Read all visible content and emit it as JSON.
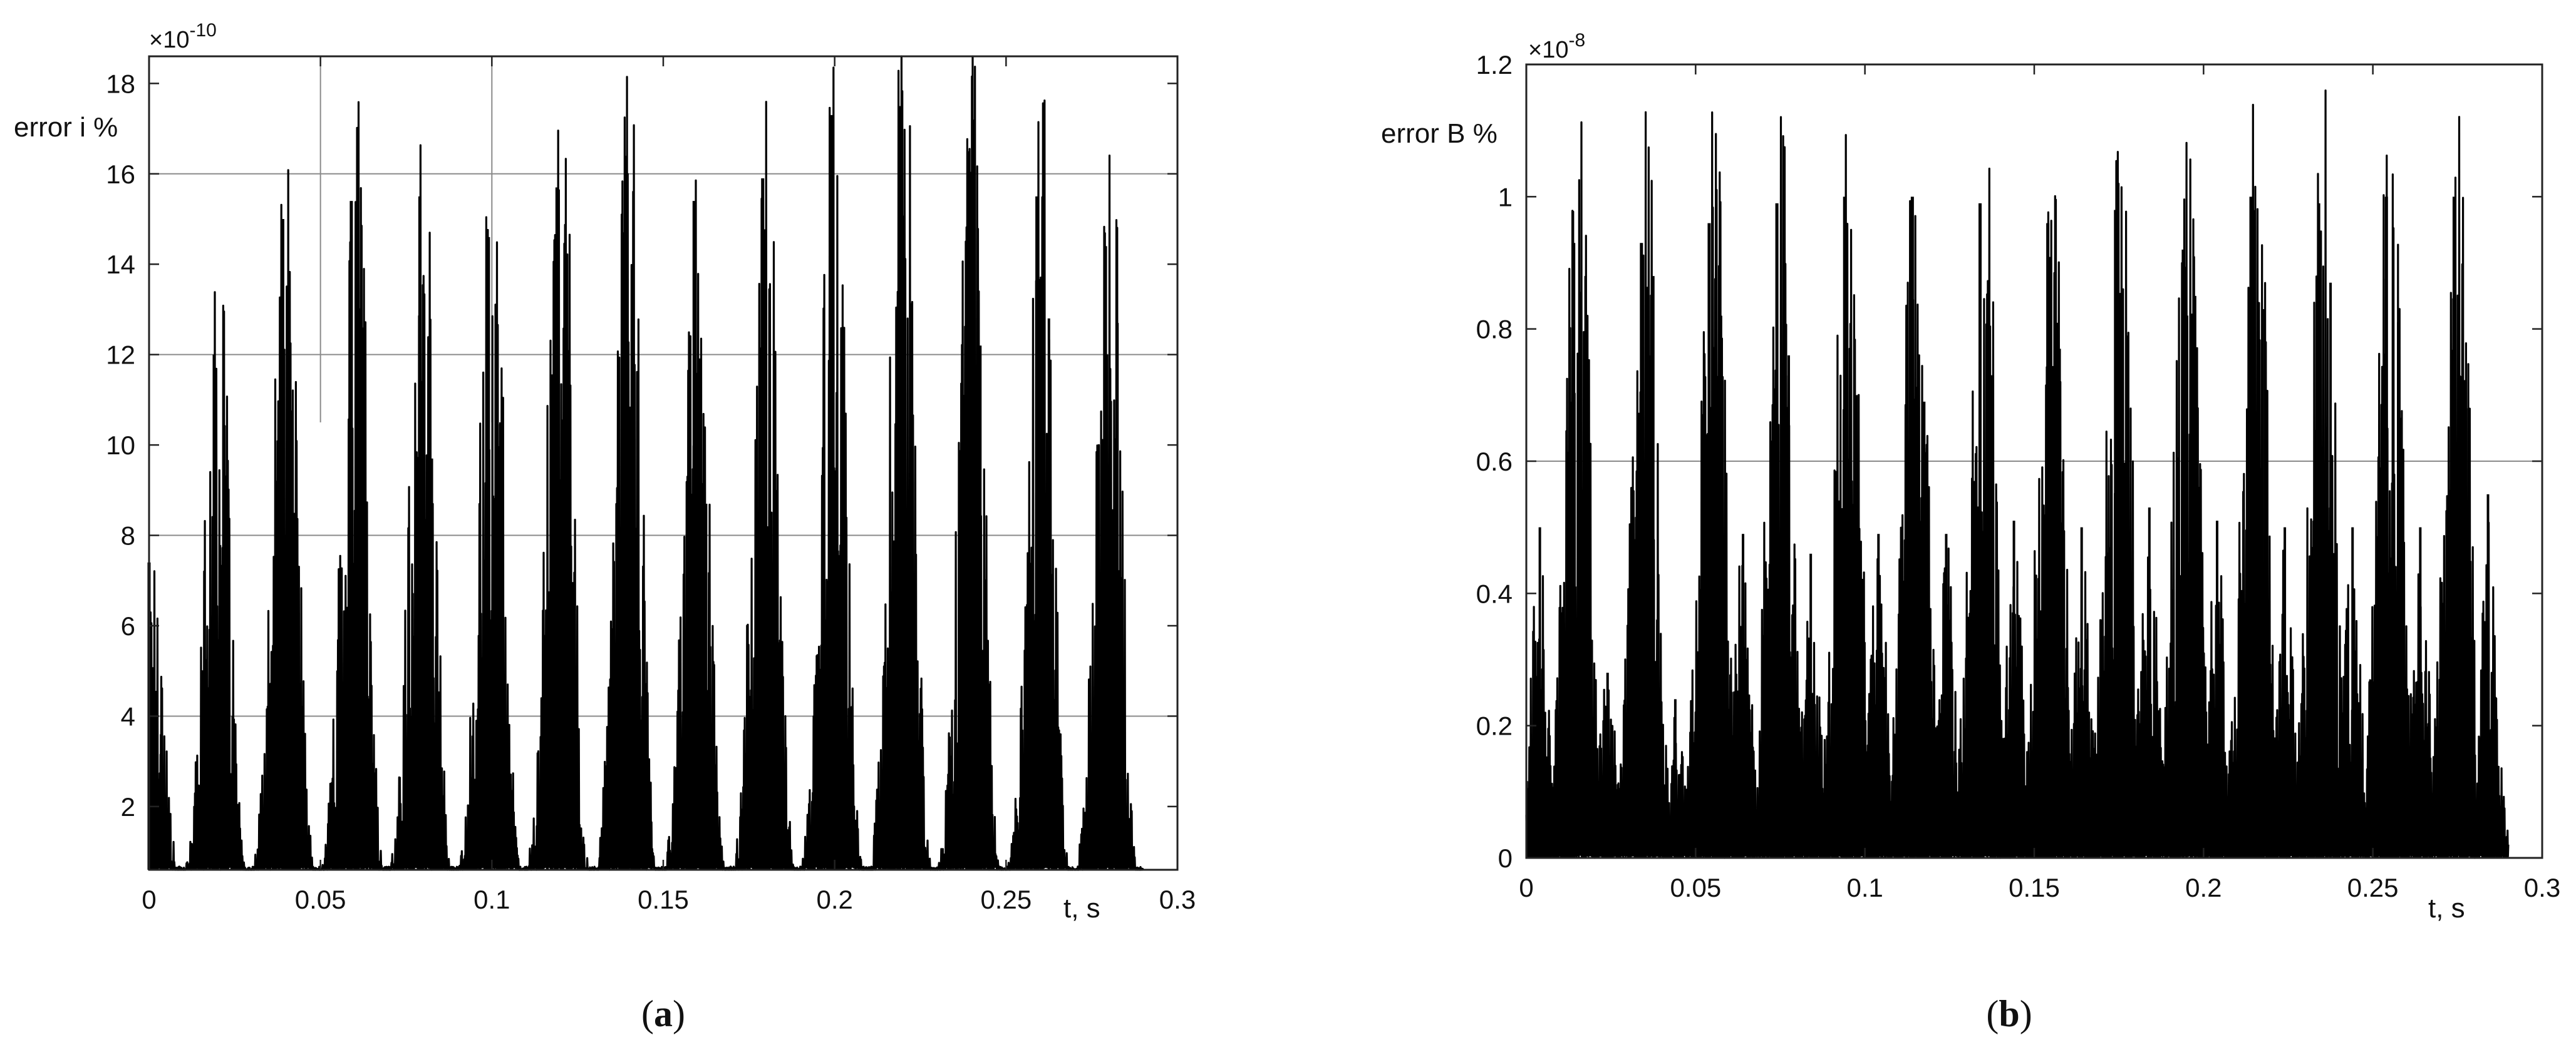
{
  "chart_data": [
    {
      "type": "line",
      "panel_label": "(a)",
      "panel_letter": "a",
      "xlabel": "t, s",
      "ylabel": "error i %",
      "y_exponent_label": "×10",
      "y_exponent_power": "-10",
      "xlim": [
        0,
        0.3
      ],
      "ylim": [
        0.6,
        18.6
      ],
      "xticks": [
        0,
        0.05,
        0.1,
        0.15,
        0.2,
        0.25,
        0.3
      ],
      "xtick_labels": [
        "0",
        "0.05",
        "0.1",
        "0.15",
        "0.2",
        "0.25",
        "0.3"
      ],
      "yticks": [
        2,
        4,
        6,
        8,
        10,
        12,
        14,
        16,
        18
      ],
      "ytick_labels": [
        "2",
        "4",
        "6",
        "8",
        "10",
        "12",
        "14",
        "16",
        "18"
      ],
      "grid_y": [
        4,
        8,
        12,
        16
      ],
      "grid_x": [
        0.05,
        0.1
      ],
      "series": [
        {
          "color": "#000000",
          "peak_times": [
            0.0,
            0.019,
            0.039,
            0.059,
            0.079,
            0.099,
            0.119,
            0.139,
            0.159,
            0.179,
            0.199,
            0.219,
            0.239,
            0.259,
            0.279
          ],
          "peak_values": [
            7.4,
            12.0,
            15.0,
            15.4,
            15.5,
            14.6,
            15.7,
            16.4,
            15.4,
            15.9,
            17.3,
            17.5,
            16.5,
            15.5,
            14.4
          ],
          "side_peak_values": [
            3.6,
            9.3,
            8.5,
            12.6,
            9.7,
            10.5,
            12.1,
            11.0,
            8.7,
            10.1,
            7.3,
            11.2,
            12.2,
            12.8,
            12.7
          ],
          "t_end": 0.29
        }
      ]
    },
    {
      "type": "line",
      "panel_label": "(b)",
      "panel_letter": "b",
      "xlabel": "t, s",
      "ylabel": "error B %",
      "y_exponent_label": "×10",
      "y_exponent_power": "-8",
      "xlim": [
        0,
        0.3
      ],
      "ylim": [
        0,
        1.2
      ],
      "xticks": [
        0,
        0.05,
        0.1,
        0.15,
        0.2,
        0.25,
        0.3
      ],
      "xtick_labels": [
        "0",
        "0.05",
        "0.1",
        "0.15",
        "0.2",
        "0.25",
        "0.3"
      ],
      "yticks": [
        0,
        0.2,
        0.4,
        0.6,
        0.8,
        1.0,
        1.2
      ],
      "ytick_labels": [
        "0",
        "0.2",
        "0.4",
        "0.6",
        "0.8",
        "1",
        "1.2"
      ],
      "grid_y": [
        0.6
      ],
      "grid_x": [],
      "series": [
        {
          "color": "#000000",
          "peak_times": [
            0.014,
            0.034,
            0.054,
            0.074,
            0.094,
            0.114,
            0.134,
            0.154,
            0.174,
            0.194,
            0.214,
            0.234,
            0.254,
            0.274
          ],
          "peak_values": [
            0.93,
            0.93,
            0.96,
            0.99,
            1.0,
            1.0,
            0.99,
            0.96,
            0.98,
            0.92,
            1.0,
            0.99,
            1.0,
            1.0
          ],
          "side_peak_values": [
            0.88,
            0.88,
            0.82,
            0.76,
            0.7,
            0.69,
            0.73,
            0.77,
            0.79,
            0.85,
            0.83,
            0.87,
            0.81,
            0.68
          ],
          "secondary_times": [
            0.004,
            0.024,
            0.044,
            0.064,
            0.084,
            0.104,
            0.124,
            0.144,
            0.164,
            0.184,
            0.204,
            0.224,
            0.244,
            0.264,
            0.284
          ],
          "secondary_values": [
            0.5,
            0.28,
            0.24,
            0.49,
            0.46,
            0.49,
            0.49,
            0.51,
            0.5,
            0.53,
            0.51,
            0.5,
            0.5,
            0.5,
            0.55
          ],
          "t_end": 0.29
        }
      ]
    }
  ]
}
